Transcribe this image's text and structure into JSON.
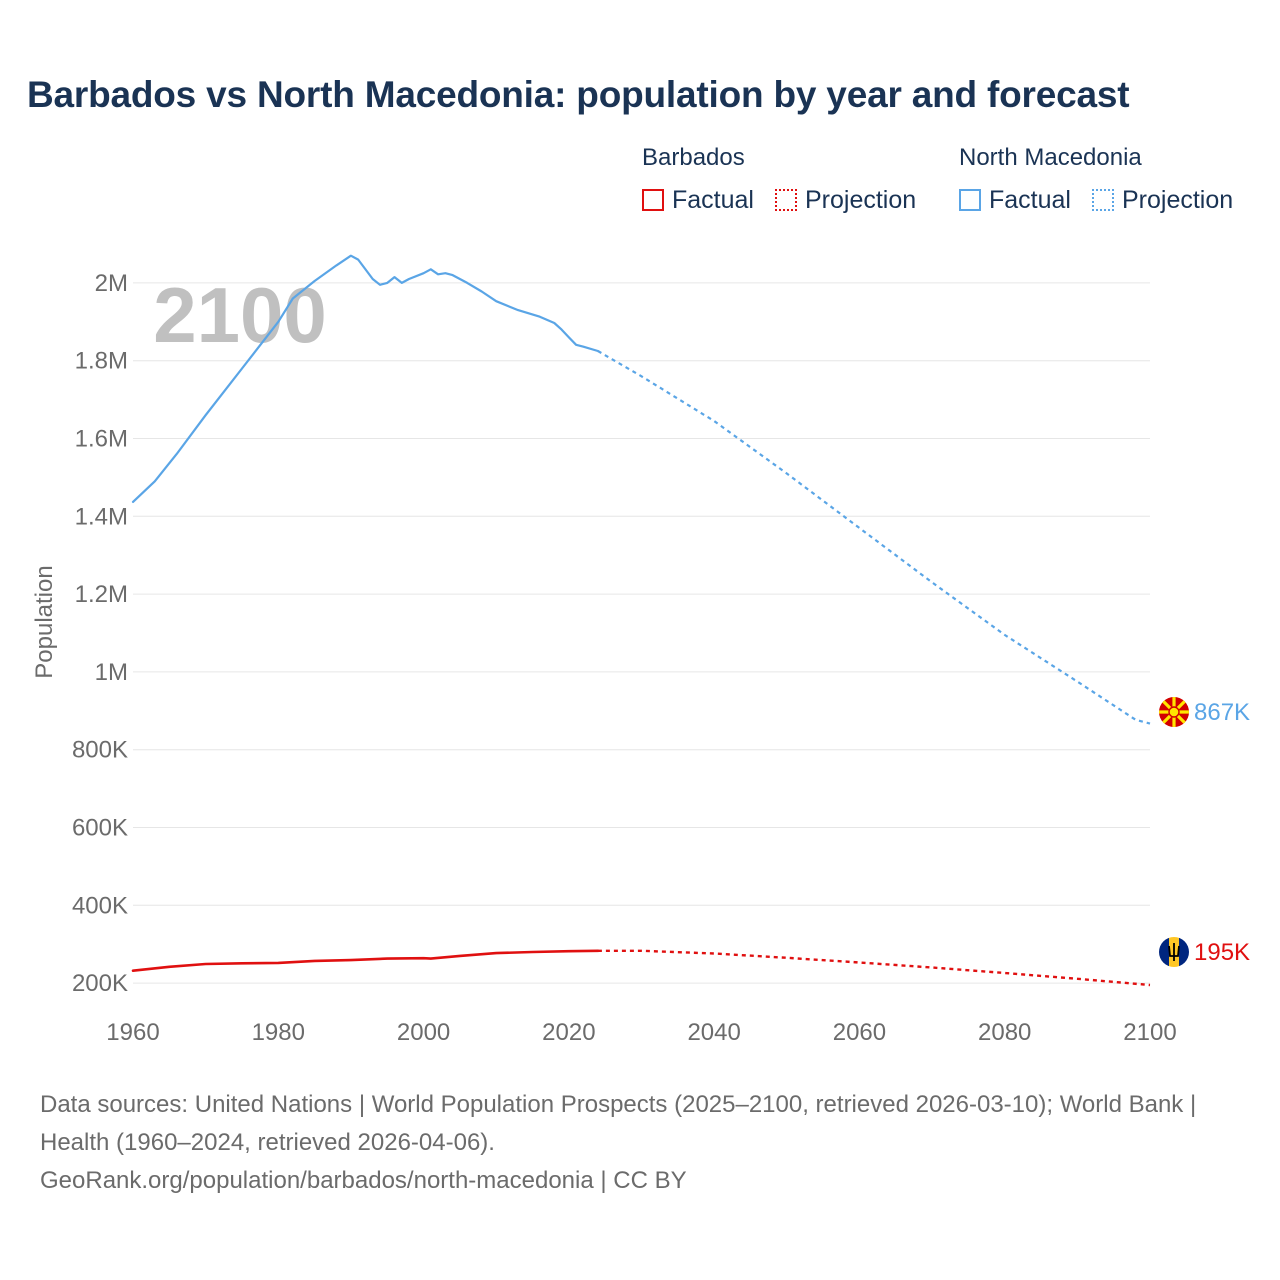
{
  "colors": {
    "barbados": "#e01010",
    "north_macedonia": "#5aa5e6",
    "title": "#1a3354",
    "axis_text": "#6b6b6b",
    "grid": "#e6e6e6",
    "year_watermark": "#c0c0c0"
  },
  "legend": {
    "groups": [
      {
        "title": "Barbados",
        "factual": "Factual",
        "projection": "Projection"
      },
      {
        "title": "North Macedonia",
        "factual": "Factual",
        "projection": "Projection"
      }
    ]
  },
  "footer": {
    "sources": "Data sources: United Nations | World Population Prospects (2025–2100, retrieved 2026-03-10); World Bank | Health (1960–2024, retrieved 2026-04-06).",
    "url": "GeoRank.org/population/barbados/north-macedonia | CC BY"
  },
  "chart_data": {
    "type": "line",
    "title": "Barbados vs North Macedonia: population by year and forecast",
    "xlabel": "",
    "ylabel": "Population",
    "xlim": [
      1960,
      2100
    ],
    "ylim": [
      100000,
      2100000
    ],
    "x_ticks": [
      1960,
      1980,
      2000,
      2020,
      2040,
      2060,
      2080,
      2100
    ],
    "x_tick_labels": [
      "1960",
      "1980",
      "2000",
      "2020",
      "2040",
      "2060",
      "2080",
      "2100"
    ],
    "y_ticks": [
      200000,
      400000,
      600000,
      800000,
      1000000,
      1200000,
      1400000,
      1600000,
      1800000,
      2000000
    ],
    "y_tick_labels": [
      "200K",
      "400K",
      "600K",
      "800K",
      "1M",
      "1.2M",
      "1.4M",
      "1.6M",
      "1.8M",
      "2M"
    ],
    "current_year_label": "2100",
    "series": [
      {
        "name": "North Macedonia",
        "end_label": "867K",
        "factual": [
          [
            1960,
            1437000
          ],
          [
            1963,
            1490000
          ],
          [
            1966,
            1560000
          ],
          [
            1970,
            1660000
          ],
          [
            1975,
            1780000
          ],
          [
            1980,
            1900000
          ],
          [
            1982,
            1960000
          ],
          [
            1985,
            2005000
          ],
          [
            1988,
            2045000
          ],
          [
            1990,
            2070000
          ],
          [
            1991,
            2060000
          ],
          [
            1993,
            2010000
          ],
          [
            1994,
            1995000
          ],
          [
            1995,
            2000000
          ],
          [
            1996,
            2015000
          ],
          [
            1997,
            2000000
          ],
          [
            1998,
            2010000
          ],
          [
            2000,
            2025000
          ],
          [
            2001,
            2035000
          ],
          [
            2002,
            2022000
          ],
          [
            2003,
            2025000
          ],
          [
            2004,
            2020000
          ],
          [
            2006,
            2000000
          ],
          [
            2008,
            1978000
          ],
          [
            2010,
            1953000
          ],
          [
            2013,
            1930000
          ],
          [
            2016,
            1913000
          ],
          [
            2018,
            1897000
          ],
          [
            2019,
            1880000
          ],
          [
            2020,
            1860000
          ],
          [
            2021,
            1841000
          ],
          [
            2022,
            1836000
          ],
          [
            2024,
            1825000
          ]
        ],
        "projection": [
          [
            2024,
            1825000
          ],
          [
            2030,
            1760000
          ],
          [
            2040,
            1645000
          ],
          [
            2050,
            1510000
          ],
          [
            2060,
            1370000
          ],
          [
            2070,
            1230000
          ],
          [
            2080,
            1095000
          ],
          [
            2090,
            975000
          ],
          [
            2098,
            877000
          ],
          [
            2100,
            867000
          ]
        ]
      },
      {
        "name": "Barbados",
        "end_label": "195K",
        "factual": [
          [
            1960,
            232000
          ],
          [
            1965,
            242000
          ],
          [
            1970,
            249000
          ],
          [
            1975,
            251000
          ],
          [
            1980,
            252000
          ],
          [
            1985,
            257000
          ],
          [
            1990,
            259000
          ],
          [
            1995,
            263000
          ],
          [
            2000,
            264000
          ],
          [
            2001,
            263000
          ],
          [
            2005,
            270000
          ],
          [
            2010,
            277000
          ],
          [
            2015,
            280000
          ],
          [
            2020,
            282000
          ],
          [
            2024,
            283000
          ]
        ],
        "projection": [
          [
            2024,
            283000
          ],
          [
            2030,
            283000
          ],
          [
            2040,
            276000
          ],
          [
            2050,
            265000
          ],
          [
            2060,
            253000
          ],
          [
            2070,
            240000
          ],
          [
            2080,
            226000
          ],
          [
            2090,
            211000
          ],
          [
            2100,
            195000
          ]
        ]
      }
    ]
  }
}
